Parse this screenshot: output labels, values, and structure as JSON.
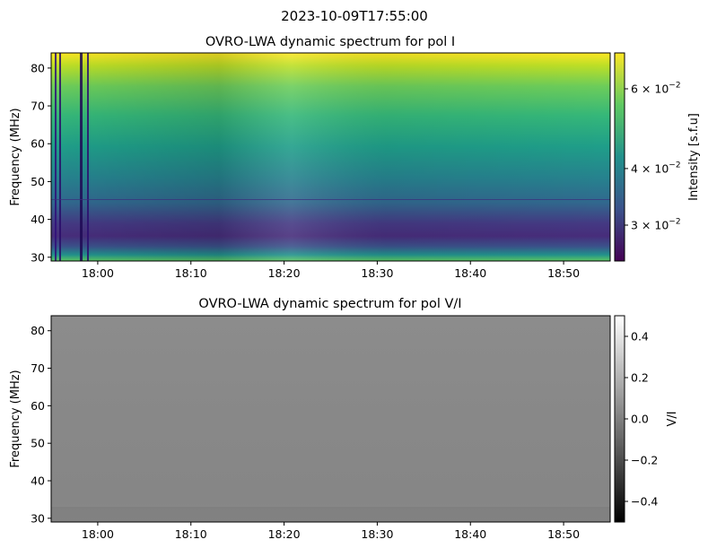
{
  "figure": {
    "suptitle": "2023-10-09T17:55:00"
  },
  "chart_data": [
    {
      "type": "heatmap",
      "title": "OVRO-LWA dynamic spectrum for pol I",
      "xlabel": "",
      "ylabel": "Frequency (MHz)",
      "x_type": "time",
      "x_range": [
        "17:55",
        "18:55"
      ],
      "x_ticks": [
        "18:00",
        "18:10",
        "18:20",
        "18:30",
        "18:40",
        "18:50"
      ],
      "y_range": [
        29,
        84
      ],
      "y_ticks": [
        30,
        40,
        50,
        60,
        70,
        80
      ],
      "colormap": "viridis",
      "colorbar": {
        "label": "Intensity [s.f.u]",
        "scale": "log",
        "range": [
          0.025,
          0.072
        ],
        "tick_values": [
          0.03,
          0.04,
          0.06
        ],
        "tick_labels": [
          "3 × 10⁻²",
          "4 × 10⁻²",
          "6 × 10⁻²"
        ],
        "tick_mantissas": [
          "3",
          "4",
          "6"
        ],
        "tick_base": "× 10",
        "tick_exponent": "−2"
      },
      "colors": {
        "low": "#440154",
        "mid": "#21918c",
        "high": "#fde725"
      }
    },
    {
      "type": "heatmap",
      "title": "OVRO-LWA dynamic spectrum for pol V/I",
      "xlabel": "",
      "ylabel": "Frequency (MHz)",
      "x_type": "time",
      "x_range": [
        "17:55",
        "18:55"
      ],
      "x_ticks": [
        "18:00",
        "18:10",
        "18:20",
        "18:30",
        "18:40",
        "18:50"
      ],
      "y_range": [
        29,
        84
      ],
      "y_ticks": [
        30,
        40,
        50,
        60,
        70,
        80
      ],
      "colormap": "gray",
      "colorbar": {
        "label": "V/I",
        "scale": "linear",
        "range": [
          -0.5,
          0.5
        ],
        "tick_values": [
          0.4,
          0.2,
          0.0,
          -0.2,
          -0.4
        ],
        "tick_labels": [
          "0.4",
          "0.2",
          "0.0",
          "−0.2",
          "−0.4"
        ]
      },
      "colors": {
        "low": "#000000",
        "mid": "#808080",
        "high": "#ffffff"
      }
    }
  ]
}
